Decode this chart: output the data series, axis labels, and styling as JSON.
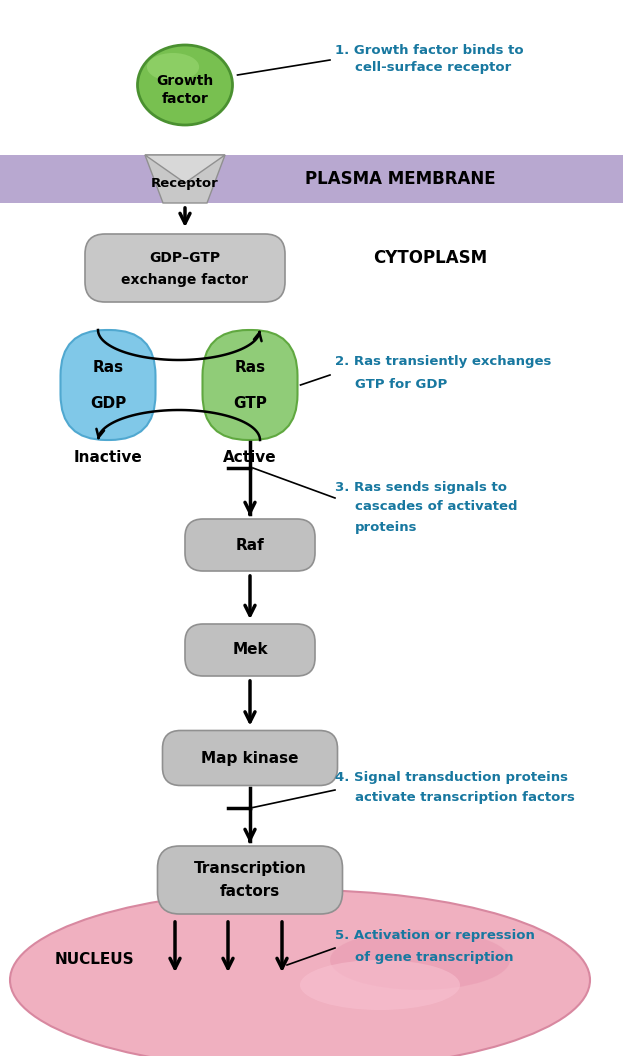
{
  "bg_color": "#ffffff",
  "membrane_color": "#b8a8d0",
  "membrane_label": "PLASMA MEMBRANE",
  "cytoplasm_label": "CYTOPLASM",
  "nucleus_label": "NUCLEUS",
  "teal": "#1878a0",
  "black": "#000000",
  "gf_green_light": "#78c050",
  "gf_green_dark": "#4a9030",
  "ras_gdp_color": "#80c8e8",
  "ras_gtp_color": "#90cc78",
  "gray_box": "#c0c0c0",
  "gray_box_dark": "#a0a0a0",
  "nucleus_pink": "#f0b0c0",
  "nucleus_pink_edge": "#d888a0",
  "receptor_gray": "#b8b8b8",
  "exchange_gray": "#c8c8c8"
}
